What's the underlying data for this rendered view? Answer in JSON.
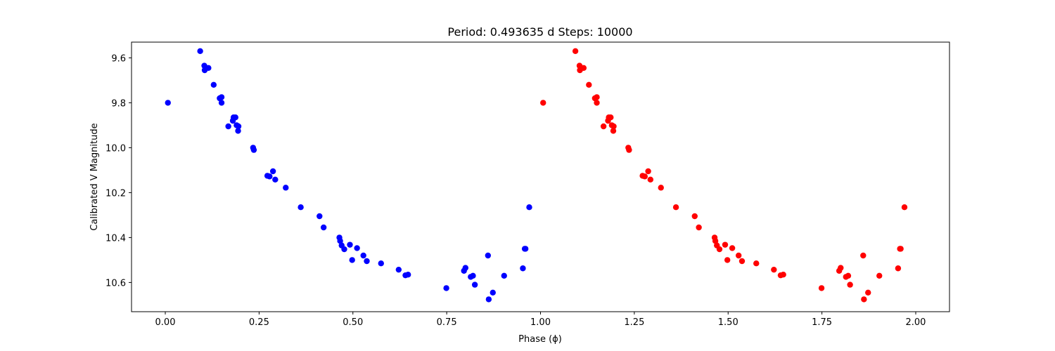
{
  "chart_data": {
    "type": "scatter",
    "title": "Period: 0.493635 d  Steps: 10000",
    "xlabel": "Phase (ϕ)",
    "ylabel": "Calibrated V Magnitude",
    "xlim": [
      -0.09,
      2.09
    ],
    "ylim": [
      10.73,
      9.53
    ],
    "y_inverted": true,
    "grid": false,
    "x_ticks": [
      "0.00",
      "0.25",
      "0.50",
      "0.75",
      "1.00",
      "1.25",
      "1.50",
      "1.75",
      "2.00"
    ],
    "x_tick_values": [
      0,
      0.25,
      0.5,
      0.75,
      1.0,
      1.25,
      1.5,
      1.75,
      2.0
    ],
    "y_ticks": [
      "9.6",
      "9.8",
      "10.0",
      "10.2",
      "10.4",
      "10.6"
    ],
    "y_tick_values": [
      9.6,
      9.8,
      10.0,
      10.2,
      10.4,
      10.6
    ],
    "series": [
      {
        "color": "#0000ff",
        "x": [
          0.007,
          0.093,
          0.104,
          0.105,
          0.115,
          0.129,
          0.145,
          0.15,
          0.15,
          0.168,
          0.18,
          0.182,
          0.187,
          0.19,
          0.194,
          0.195,
          0.234,
          0.236,
          0.272,
          0.278,
          0.287,
          0.293,
          0.321,
          0.361,
          0.411,
          0.422,
          0.464,
          0.466,
          0.47,
          0.477,
          0.492,
          0.498,
          0.511,
          0.528,
          0.537,
          0.575,
          0.622,
          0.64,
          0.647,
          0.749,
          0.796,
          0.8,
          0.814,
          0.82,
          0.825,
          0.86,
          0.862,
          0.873,
          0.903,
          0.953,
          0.958,
          0.96,
          0.97
        ],
        "y": [
          9.8,
          9.57,
          9.635,
          9.655,
          9.645,
          9.72,
          9.78,
          9.775,
          9.8,
          9.905,
          9.88,
          9.865,
          9.865,
          9.9,
          9.925,
          9.905,
          10.0,
          10.01,
          10.125,
          10.128,
          10.105,
          10.142,
          10.178,
          10.265,
          10.305,
          10.355,
          10.4,
          10.415,
          10.435,
          10.452,
          10.432,
          10.5,
          10.447,
          10.48,
          10.505,
          10.515,
          10.543,
          10.568,
          10.565,
          10.625,
          10.548,
          10.535,
          10.575,
          10.57,
          10.61,
          10.48,
          10.675,
          10.645,
          10.57,
          10.537,
          10.45,
          10.45,
          10.265
        ]
      },
      {
        "color": "#ff0000",
        "x": [
          1.007,
          1.093,
          1.104,
          1.105,
          1.115,
          1.129,
          1.145,
          1.15,
          1.15,
          1.168,
          1.18,
          1.182,
          1.187,
          1.19,
          1.194,
          1.195,
          1.234,
          1.236,
          1.272,
          1.278,
          1.287,
          1.293,
          1.321,
          1.361,
          1.411,
          1.422,
          1.464,
          1.466,
          1.47,
          1.477,
          1.492,
          1.498,
          1.511,
          1.528,
          1.537,
          1.575,
          1.622,
          1.64,
          1.647,
          1.749,
          1.796,
          1.8,
          1.814,
          1.82,
          1.825,
          1.86,
          1.862,
          1.873,
          1.903,
          1.953,
          1.958,
          1.96,
          1.97
        ],
        "y": [
          9.8,
          9.57,
          9.635,
          9.655,
          9.645,
          9.72,
          9.78,
          9.775,
          9.8,
          9.905,
          9.88,
          9.865,
          9.865,
          9.9,
          9.925,
          9.905,
          10.0,
          10.01,
          10.125,
          10.128,
          10.105,
          10.142,
          10.178,
          10.265,
          10.305,
          10.355,
          10.4,
          10.415,
          10.435,
          10.452,
          10.432,
          10.5,
          10.447,
          10.48,
          10.505,
          10.515,
          10.543,
          10.568,
          10.565,
          10.625,
          10.548,
          10.535,
          10.575,
          10.57,
          10.61,
          10.48,
          10.675,
          10.645,
          10.57,
          10.537,
          10.45,
          10.45,
          10.265
        ]
      }
    ]
  }
}
